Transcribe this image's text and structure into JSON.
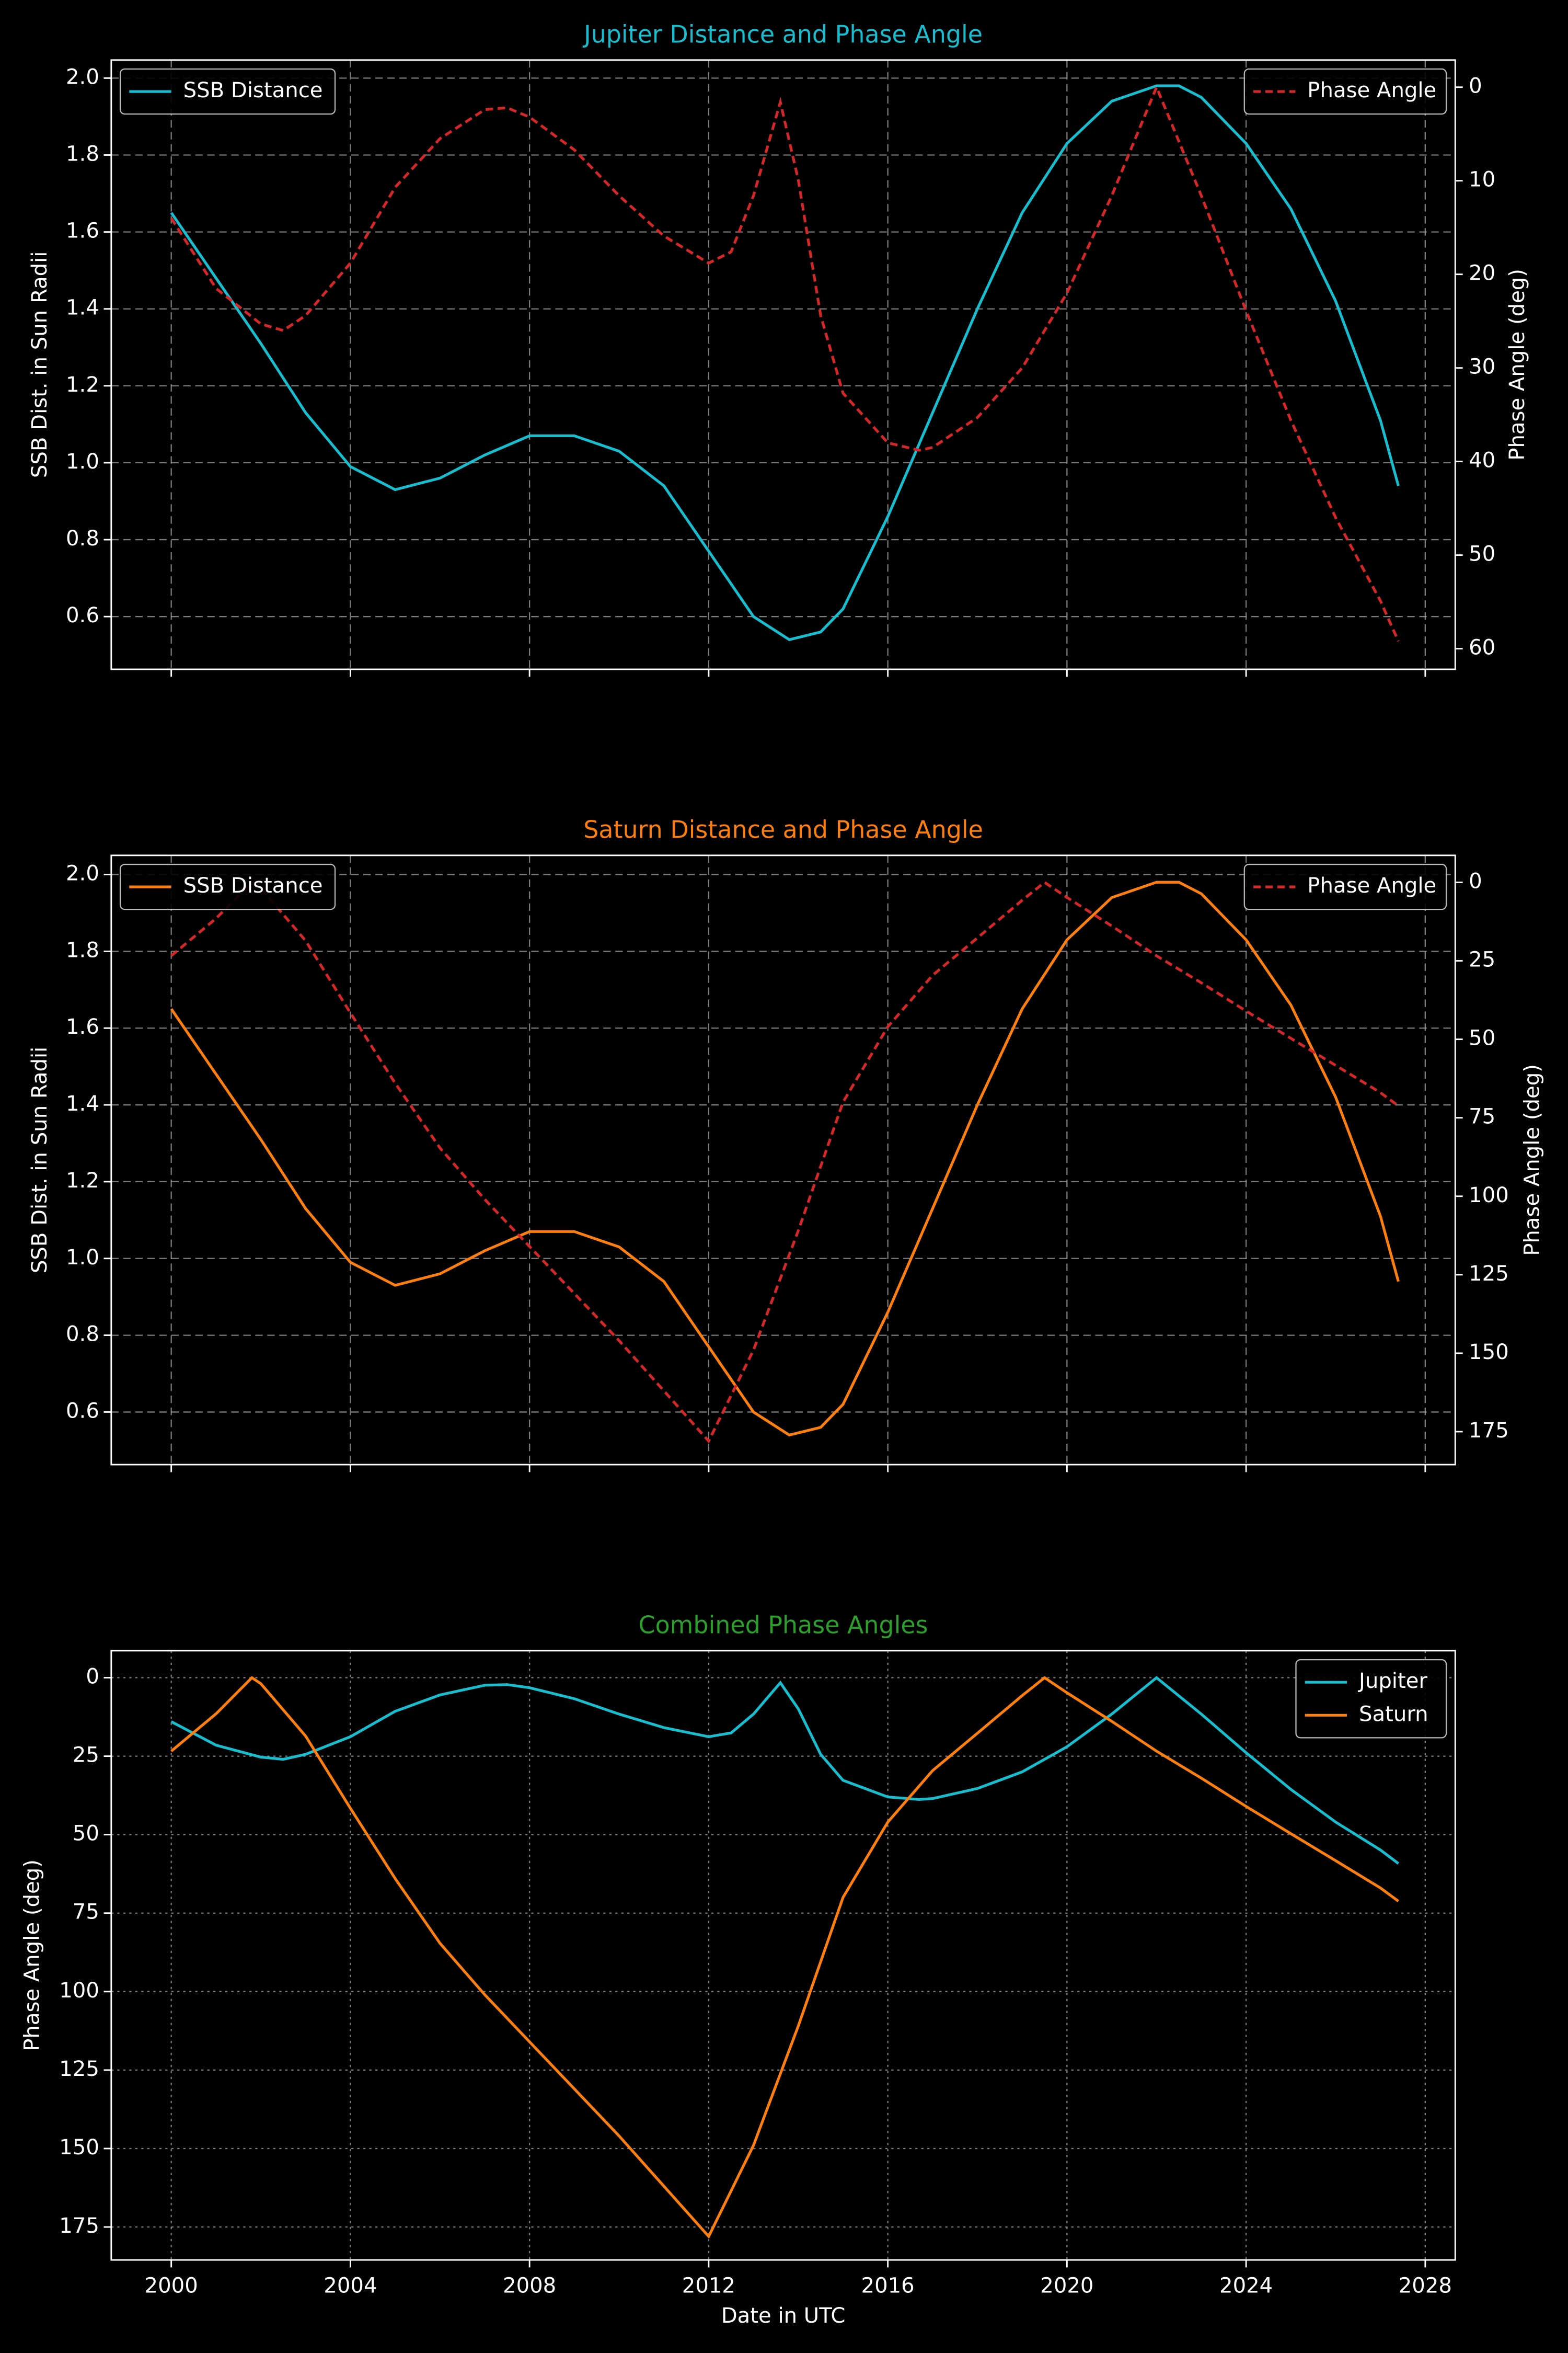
{
  "chart_data": [
    {
      "type": "line",
      "title": "Jupiter Distance and Phase Angle",
      "title_color": "#17becf",
      "ylabel": "SSB Dist. in Sun Radii",
      "y2label": "Phase Angle (deg)",
      "xlim": [
        1998.66,
        2028.67
      ],
      "xticks": [
        2000,
        2004,
        2008,
        2012,
        2016,
        2020,
        2024,
        2028
      ],
      "ylim": [
        0.463,
        2.047
      ],
      "yticks": [
        0.6,
        0.8,
        {
          "value": 1.0,
          "label": "1.0"
        },
        1.2,
        1.4,
        1.6,
        1.8,
        {
          "value": 2.0,
          "label": "2.0"
        }
      ],
      "y2lim": [
        62.2,
        -2.9
      ],
      "y2ticks": [
        0,
        10,
        20,
        30,
        40,
        50,
        60
      ],
      "grid": true,
      "grid_style": "dashed",
      "legend_loc": "upper left",
      "y2_legend_loc": "upper right",
      "series": [
        {
          "name": "SSB Distance",
          "color": "#17becf",
          "axis": "y",
          "linestyle": "solid",
          "x": [
            2000,
            2001,
            2002,
            2003,
            2004,
            2005,
            2006,
            2007,
            2008,
            2009,
            2010,
            2011,
            2012,
            2013,
            2013.8,
            2014.5,
            2015,
            2016,
            2017,
            2018,
            2019,
            2020,
            2021,
            2022,
            2022.5,
            2023,
            2024,
            2025,
            2026,
            2027,
            2027.4
          ],
          "values": [
            1.65,
            1.48,
            1.31,
            1.13,
            0.99,
            0.93,
            0.96,
            1.02,
            1.07,
            1.07,
            1.03,
            0.94,
            0.77,
            0.6,
            0.54,
            0.56,
            0.62,
            0.86,
            1.13,
            1.4,
            1.65,
            1.83,
            1.94,
            1.98,
            1.98,
            1.95,
            1.83,
            1.66,
            1.42,
            1.11,
            0.94
          ]
        },
        {
          "name": "Phase Angle",
          "color": "#d62728",
          "axis": "y2",
          "linestyle": "dashed",
          "x": [
            2000,
            2001,
            2002,
            2002.5,
            2003,
            2004,
            2005,
            2006,
            2007,
            2007.5,
            2008,
            2009,
            2010,
            2011,
            2012,
            2012.5,
            2013,
            2013.6,
            2014,
            2014.5,
            2015,
            2016,
            2016.7,
            2017,
            2018,
            2019,
            2020,
            2021,
            2022,
            2023,
            2024,
            2025,
            2026,
            2027,
            2027.4
          ],
          "values": [
            14,
            21.5,
            25.3,
            26,
            24.4,
            18.8,
            10.7,
            5.5,
            2.4,
            2.2,
            3.2,
            6.7,
            11.6,
            15.9,
            18.8,
            17.6,
            11.6,
            1.6,
            9.9,
            24.4,
            32.7,
            38,
            38.8,
            38.5,
            35.3,
            30,
            22,
            11.6,
            0,
            11.6,
            23.9,
            35.6,
            46,
            54.9,
            59.2
          ]
        }
      ]
    },
    {
      "type": "line",
      "title": "Saturn Distance and Phase Angle",
      "title_color": "#ff7f0e",
      "ylabel": "SSB Dist. in Sun Radii",
      "y2label": "Phase Angle (deg)",
      "xlim": [
        1998.66,
        2028.67
      ],
      "xticks": [
        2000,
        2004,
        2008,
        2012,
        2016,
        2020,
        2024,
        2028
      ],
      "ylim": [
        0.463,
        2.05
      ],
      "yticks": [
        0.6,
        0.8,
        {
          "value": 1.0,
          "label": "1.0"
        },
        1.2,
        1.4,
        1.6,
        1.8,
        {
          "value": 2.0,
          "label": "2.0"
        }
      ],
      "y2lim": [
        185.5,
        -8.6
      ],
      "y2ticks": [
        0,
        25,
        50,
        75,
        100,
        125,
        150,
        175
      ],
      "grid": true,
      "grid_style": "dashed",
      "legend_loc": "upper left",
      "y2_legend_loc": "upper right",
      "series": [
        {
          "name": "SSB Distance",
          "color": "#ff7f0e",
          "axis": "y",
          "linestyle": "solid",
          "x": [
            2000,
            2001,
            2002,
            2003,
            2004,
            2005,
            2006,
            2007,
            2008,
            2009,
            2010,
            2011,
            2012,
            2013,
            2013.8,
            2014.5,
            2015,
            2016,
            2017,
            2018,
            2019,
            2020,
            2021,
            2022,
            2022.5,
            2023,
            2024,
            2025,
            2026,
            2027,
            2027.4
          ],
          "values": [
            1.65,
            1.48,
            1.31,
            1.13,
            0.99,
            0.93,
            0.96,
            1.02,
            1.07,
            1.07,
            1.03,
            0.94,
            0.77,
            0.6,
            0.54,
            0.56,
            0.62,
            0.86,
            1.13,
            1.4,
            1.65,
            1.83,
            1.94,
            1.98,
            1.98,
            1.95,
            1.83,
            1.66,
            1.42,
            1.11,
            0.94
          ]
        },
        {
          "name": "Phase Angle",
          "color": "#d62728",
          "axis": "y2",
          "linestyle": "dashed",
          "x": [
            2000,
            2001,
            2001.8,
            2002,
            2003,
            2004,
            2005,
            2006,
            2007,
            2008,
            2009,
            2010,
            2011,
            2012,
            2013,
            2014,
            2015,
            2016,
            2017,
            2018,
            2019,
            2019.5,
            2020,
            2021,
            2022,
            2023,
            2024,
            2025,
            2026,
            2027,
            2027.4
          ],
          "values": [
            23.4,
            11.5,
            0,
            1.9,
            18.6,
            41.6,
            64,
            84.6,
            101,
            116,
            131,
            146,
            162,
            178,
            149,
            111,
            70,
            46,
            29.6,
            17.7,
            5.7,
            0,
            4.8,
            13.9,
            23.4,
            32,
            41,
            49.7,
            58.3,
            67,
            71.2
          ]
        }
      ]
    },
    {
      "type": "line",
      "title": "Combined Phase Angles",
      "title_color": "#2ca02c",
      "ylabel": "Phase Angle (deg)",
      "xlabel": "Date in UTC",
      "xlim": [
        1998.66,
        2028.67
      ],
      "xticks": [
        2000,
        2004,
        2008,
        2012,
        2016,
        2020,
        2024,
        2028
      ],
      "ylim": [
        185.5,
        -8.6
      ],
      "yticks": [
        0,
        25,
        50,
        75,
        100,
        125,
        150,
        175
      ],
      "grid": true,
      "grid_style": "dotted",
      "legend_loc": "upper right",
      "series": [
        {
          "name": "Jupiter",
          "color": "#17becf",
          "axis": "y",
          "linestyle": "solid",
          "x": [
            2000,
            2001,
            2002,
            2002.5,
            2003,
            2004,
            2005,
            2006,
            2007,
            2007.5,
            2008,
            2009,
            2010,
            2011,
            2012,
            2012.5,
            2013,
            2013.6,
            2014,
            2014.5,
            2015,
            2016,
            2016.7,
            2017,
            2018,
            2019,
            2020,
            2021,
            2022,
            2023,
            2024,
            2025,
            2026,
            2027,
            2027.4
          ],
          "values": [
            14,
            21.5,
            25.3,
            26,
            24.4,
            18.8,
            10.7,
            5.5,
            2.4,
            2.2,
            3.2,
            6.7,
            11.6,
            15.9,
            18.8,
            17.6,
            11.6,
            1.6,
            9.9,
            24.4,
            32.7,
            38,
            38.8,
            38.5,
            35.3,
            30,
            22,
            11.6,
            0,
            11.6,
            23.9,
            35.6,
            46,
            54.9,
            59.2
          ]
        },
        {
          "name": "Saturn",
          "color": "#ff7f0e",
          "axis": "y",
          "linestyle": "solid",
          "x": [
            2000,
            2001,
            2001.8,
            2002,
            2003,
            2004,
            2005,
            2006,
            2007,
            2008,
            2009,
            2010,
            2011,
            2012,
            2013,
            2014,
            2015,
            2016,
            2017,
            2018,
            2019,
            2019.5,
            2020,
            2021,
            2022,
            2023,
            2024,
            2025,
            2026,
            2027,
            2027.4
          ],
          "values": [
            23.4,
            11.5,
            0,
            1.9,
            18.6,
            41.6,
            64,
            84.6,
            101,
            116,
            131,
            146,
            162,
            178,
            149,
            111,
            70,
            46,
            29.6,
            17.7,
            5.7,
            0,
            4.8,
            13.9,
            23.4,
            32,
            41,
            49.7,
            58.3,
            67,
            71.2
          ]
        }
      ]
    }
  ]
}
